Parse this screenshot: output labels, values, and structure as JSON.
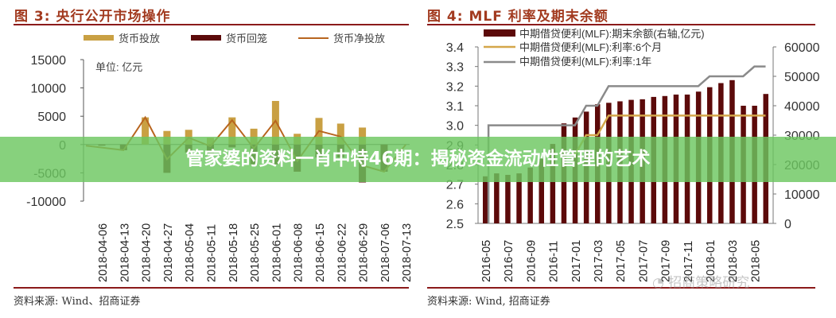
{
  "left_panel": {
    "title": "图 3:  央行公开市场操作",
    "unit_note": "单位:  亿元",
    "source": "资料来源:  Wind、招商证券"
  },
  "right_panel": {
    "title": "图 4:  MLF 利率及期末余额",
    "source": "资料来源:  Wind,  招商证券",
    "watermark": "招商策略研究"
  },
  "banner": {
    "text": "管家婆的资料一肖中特46期：揭秘资金流动性管理的艺术",
    "color": "#6cc760"
  },
  "colors": {
    "title_red": "#a23a1f",
    "rule": "#8b1a1a",
    "injection": "#c9a043",
    "withdrawal": "#5c0a0a",
    "net_line": "#b8651f",
    "mlf_balance": "#5c0a0a",
    "rate_6m": "#d4a74a",
    "rate_1y": "#8a8a8a"
  },
  "chart_data": [
    {
      "type": "bar",
      "title": "图 3: 央行公开市场操作",
      "xlabel": "",
      "ylabel": "单位: 亿元",
      "ylim": [
        -10000,
        15000
      ],
      "yticks": [
        "15000",
        "10000",
        "5000",
        "0",
        "-5000",
        "-10000"
      ],
      "legend": [
        "货币投放",
        "货币回笼",
        "货币净投放"
      ],
      "legend_position": "top",
      "grid": false,
      "categories": [
        "2018-04-06",
        "2018-04-13",
        "2018-04-20",
        "2018-04-27",
        "2018-05-04",
        "2018-05-11",
        "2018-05-18",
        "2018-05-25",
        "2018-06-01",
        "2018-06-08",
        "2018-06-15",
        "2018-06-22",
        "2018-06-29",
        "2018-07-06",
        "2018-07-13"
      ],
      "series": [
        {
          "name": "货币投放",
          "type": "bar",
          "values": [
            0,
            0,
            4800,
            2400,
            2600,
            1200,
            4800,
            2800,
            7700,
            1900,
            4700,
            3700,
            3000,
            0,
            0
          ]
        },
        {
          "name": "货币回笼",
          "type": "bar",
          "values": [
            -200,
            -1000,
            0,
            -5000,
            -1400,
            -1500,
            -500,
            -3500,
            -3500,
            -4800,
            -2300,
            -2300,
            -6700,
            -4800,
            0
          ]
        },
        {
          "name": "货币净投放",
          "type": "line",
          "values": [
            -200,
            -1000,
            4800,
            -2600,
            1200,
            -300,
            4300,
            -700,
            4200,
            -2900,
            2400,
            1400,
            -3700,
            -4800,
            0
          ]
        }
      ]
    },
    {
      "type": "bar",
      "title": "图 4: MLF 利率及期末余额",
      "ylim_left": [
        2.5,
        3.4
      ],
      "ylim_right": [
        0,
        60000
      ],
      "yticks_left": [
        "3.4",
        "3.3",
        "3.2",
        "3.1",
        "3.0",
        "2.9",
        "2.8",
        "2.7",
        "2.6",
        "2.5"
      ],
      "yticks_right": [
        "60000",
        "50000",
        "40000",
        "30000",
        "20000",
        "10000",
        "0"
      ],
      "legend": [
        "中期借贷便利(MLF):期末余额(右轴,亿元)",
        "中期借贷便利(MLF):利率:6个月",
        "中期借贷便利(MLF):利率:1年"
      ],
      "legend_position": "top",
      "grid": false,
      "x_tick_labels": [
        "2016-05",
        "2016-07",
        "2016-09",
        "2016-11",
        "2017-01",
        "2017-03",
        "2017-05",
        "2017-07",
        "2017-09",
        "2017-11",
        "2018-01",
        "2018-03",
        "2018-05"
      ],
      "categories": [
        "2016-05",
        "2016-06",
        "2016-07",
        "2016-08",
        "2016-09",
        "2016-10",
        "2016-11",
        "2016-12",
        "2017-01",
        "2017-02",
        "2017-03",
        "2017-04",
        "2017-05",
        "2017-06",
        "2017-07",
        "2017-08",
        "2017-09",
        "2017-10",
        "2017-11",
        "2017-12",
        "2018-01",
        "2018-02",
        "2018-03",
        "2018-04",
        "2018-05",
        "2018-06"
      ],
      "series": [
        {
          "name": "中期借贷便利(MLF):期末余额(右轴,亿元)",
          "type": "bar",
          "axis": "right",
          "values": [
            16000,
            17000,
            16500,
            17000,
            19000,
            22000,
            27000,
            34000,
            36000,
            38000,
            40500,
            41000,
            41500,
            42000,
            42200,
            43000,
            43300,
            43800,
            43800,
            44800,
            46300,
            47700,
            48700,
            40000,
            40000,
            44000
          ]
        },
        {
          "name": "中期借贷便利(MLF):利率:6个月",
          "type": "line",
          "axis": "left",
          "values": [
            null,
            null,
            null,
            null,
            null,
            null,
            null,
            null,
            2.85,
            2.95,
            2.95,
            3.05,
            3.05,
            3.05,
            3.05,
            3.05,
            3.05,
            3.05,
            3.05,
            3.05,
            3.05,
            3.05,
            3.05,
            3.05,
            3.05,
            3.05
          ]
        },
        {
          "name": "中期借贷便利(MLF):利率:1年",
          "type": "line",
          "axis": "left",
          "values": [
            2.5,
            3.0,
            3.0,
            3.0,
            3.0,
            3.0,
            3.0,
            3.0,
            3.0,
            3.1,
            3.1,
            3.2,
            3.2,
            3.2,
            3.2,
            3.2,
            3.2,
            3.2,
            3.2,
            3.2,
            3.25,
            3.25,
            3.25,
            3.25,
            3.3,
            3.3
          ]
        }
      ]
    }
  ]
}
